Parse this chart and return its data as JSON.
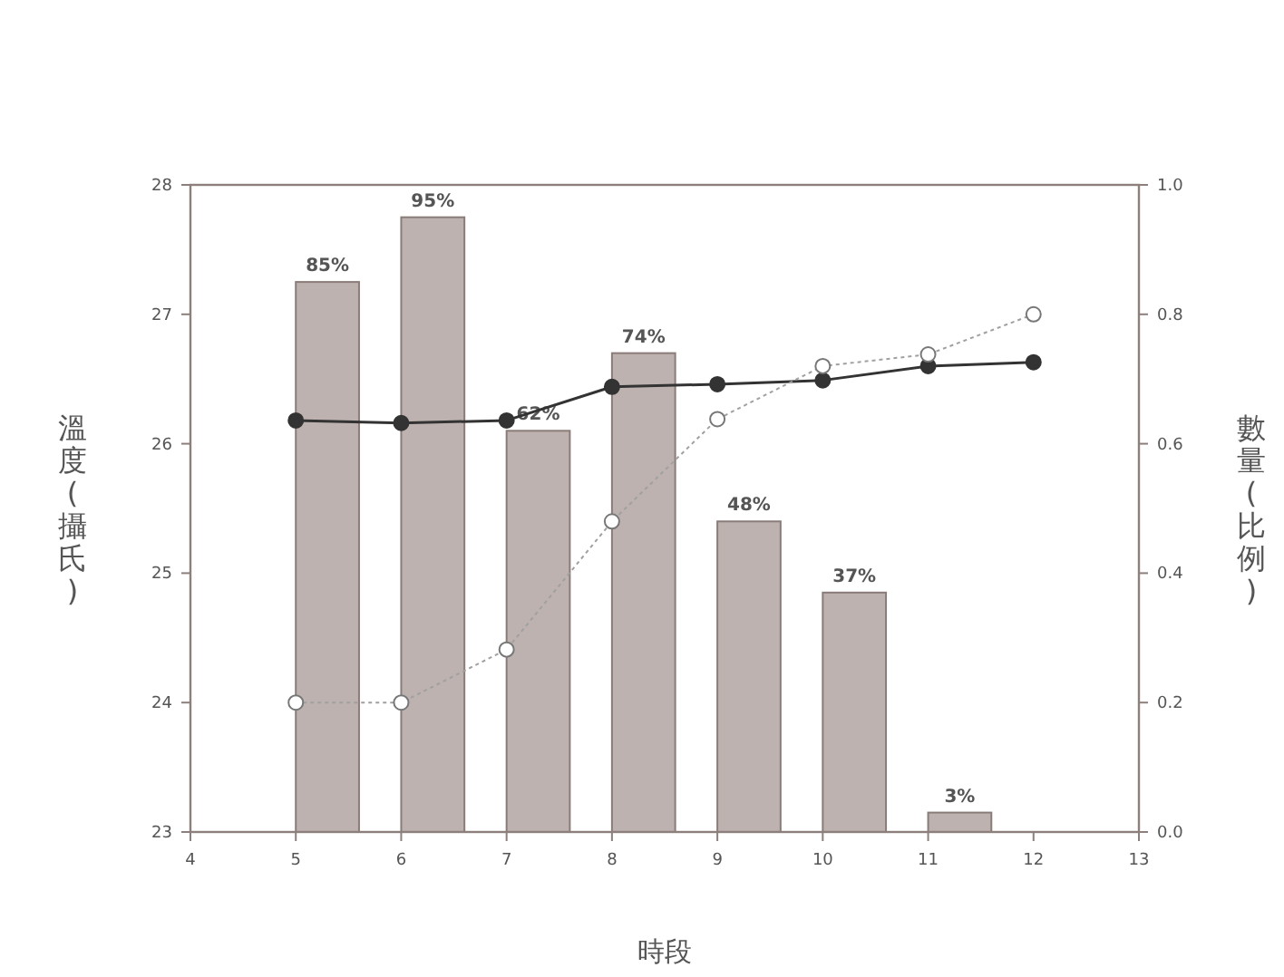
{
  "chart_data": {
    "type": "bar",
    "xlabel": "時段",
    "ylabel": "溫度(攝氏)",
    "y2label": "數量(比例)",
    "xlim": [
      4,
      13
    ],
    "xticks": [
      4,
      5,
      6,
      7,
      8,
      9,
      10,
      11,
      12,
      13
    ],
    "ylim": [
      23,
      28
    ],
    "yticks": [
      23,
      24,
      25,
      26,
      27,
      28
    ],
    "y2lim": [
      0,
      1
    ],
    "y2ticks": [
      {
        "value": 0,
        "label": "0.0"
      },
      {
        "value": 0.2,
        "label": "0.2"
      },
      {
        "value": 0.4,
        "label": "0.4"
      },
      {
        "value": 0.6,
        "label": "0.6"
      },
      {
        "value": 0.8,
        "label": "0.8"
      },
      {
        "value": 1,
        "label": "1.0"
      }
    ],
    "grid": false,
    "marker": "circle",
    "series": [
      {
        "axis": "y2",
        "color": "#bdb2af",
        "x": [
          5.3,
          6.3,
          7.3,
          8.3,
          9.3,
          10.3,
          11.3
        ],
        "values": [
          0.85,
          0.95,
          0.62,
          0.74,
          0.48,
          0.37,
          0.03
        ],
        "value_labels": [
          "85%",
          "95%",
          "62%",
          "74%",
          "48%",
          "37%",
          "3%"
        ]
      },
      {
        "type": "line",
        "color": "#333333",
        "line_style": "solid",
        "x": [
          5,
          6,
          7,
          8,
          9,
          10,
          11,
          12
        ],
        "values": [
          26.18,
          26.16,
          26.18,
          26.44,
          26.46,
          26.49,
          26.6,
          26.63
        ]
      },
      {
        "type": "line",
        "color": "#a0a0a0",
        "line_style": "dotted",
        "x": [
          5,
          6,
          7,
          8,
          9,
          10,
          11,
          12
        ],
        "values": [
          24.0,
          24.0,
          24.41,
          25.4,
          26.19,
          26.6,
          26.69,
          27.0
        ]
      }
    ]
  }
}
